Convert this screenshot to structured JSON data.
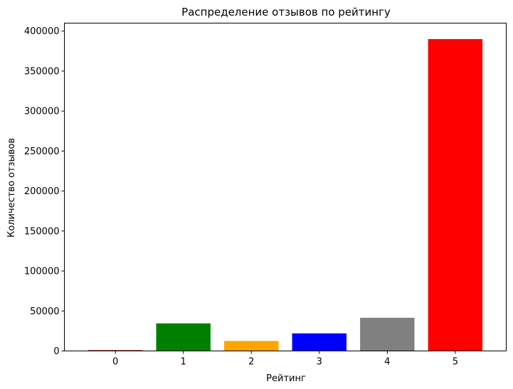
{
  "chart_data": {
    "type": "bar",
    "title": "Распределение отзывов по рейтингу",
    "xlabel": "Рейтинг",
    "ylabel": "Количество отзывов",
    "categories": [
      "0",
      "1",
      "2",
      "3",
      "4",
      "5"
    ],
    "values": [
      1000,
      34500,
      12500,
      22000,
      41500,
      390000
    ],
    "colors": [
      "#8b0000",
      "#008000",
      "#ffa500",
      "#0000ff",
      "#808080",
      "#ff0000"
    ],
    "ylim": [
      0,
      410000
    ],
    "yticks": [
      0,
      50000,
      100000,
      150000,
      200000,
      250000,
      300000,
      350000,
      400000
    ],
    "grid": false,
    "legend": "none"
  }
}
